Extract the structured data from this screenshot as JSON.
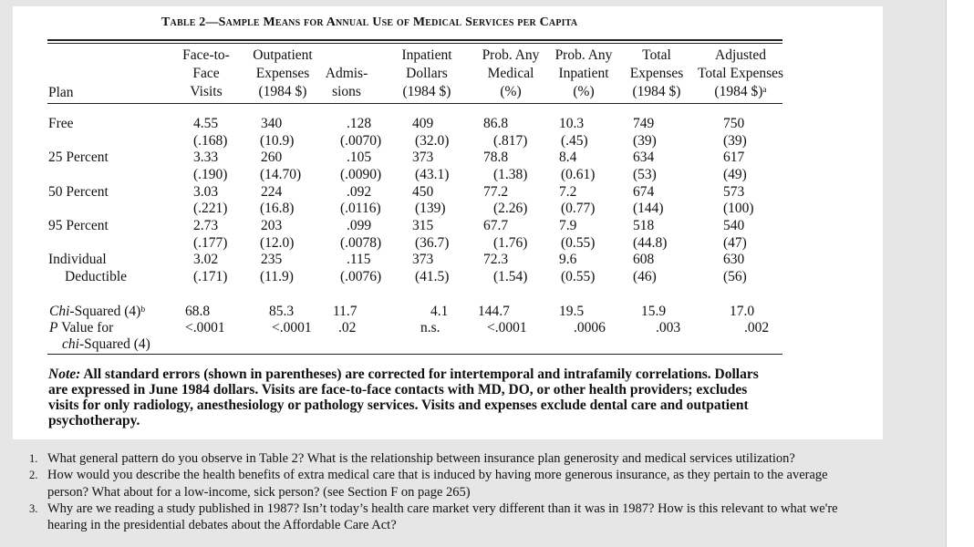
{
  "title": "Table 2—Sample Means for Annual Use of Medical Services per Capita",
  "headers": {
    "plan": "Plan",
    "columns": [
      [
        "Face-to-",
        "Face",
        "Visits"
      ],
      [
        "Outpatient",
        "Expenses",
        "(1984 $)"
      ],
      [
        "",
        "Admis-",
        "sions"
      ],
      [
        "Inpatient",
        "Dollars",
        "(1984 $)"
      ],
      [
        "Prob. Any",
        "Medical",
        "(%)"
      ],
      [
        "Prob. Any",
        "Inpatient",
        "(%)"
      ],
      [
        "Total",
        "Expenses",
        "(1984 $)"
      ],
      [
        "Adjusted",
        "Total Expenses",
        "(1984 $)ᵃ"
      ]
    ]
  },
  "rows": [
    {
      "plan": [
        "Free"
      ],
      "means": [
        "4.55",
        "340",
        ".128",
        "409",
        "86.8",
        "10.3",
        "749",
        "750"
      ],
      "se": [
        "(.168)",
        "(10.9)",
        "(.0070)",
        "(32.0)",
        "(.817)",
        "(.45)",
        "(39)",
        "(39)"
      ]
    },
    {
      "plan": [
        "25 Percent"
      ],
      "means": [
        "3.33",
        "260",
        ".105",
        "373",
        "78.8",
        "8.4",
        "634",
        "617"
      ],
      "se": [
        "(.190)",
        "(14.70)",
        "(.0090)",
        "(43.1)",
        "(1.38)",
        "(0.61)",
        "(53)",
        "(49)"
      ]
    },
    {
      "plan": [
        "50 Percent"
      ],
      "means": [
        "3.03",
        "224",
        ".092",
        "450",
        "77.2",
        "7.2",
        "674",
        "573"
      ],
      "se": [
        "(.221)",
        "(16.8)",
        "(.0116)",
        "(139)",
        "(2.26)",
        "(0.77)",
        "(144)",
        "(100)"
      ]
    },
    {
      "plan": [
        "95 Percent"
      ],
      "means": [
        "2.73",
        "203",
        ".099",
        "315",
        "67.7",
        "7.9",
        "518",
        "540"
      ],
      "se": [
        "(.177)",
        "(12.0)",
        "(.0078)",
        "(36.7)",
        "(1.76)",
        "(0.55)",
        "(44.8)",
        "(47)"
      ]
    },
    {
      "plan": [
        "Individual",
        "Deductible"
      ],
      "means": [
        "3.02",
        "235",
        ".115",
        "373",
        "72.3",
        "9.6",
        "608",
        "630"
      ],
      "se": [
        "(.171)",
        "(11.9)",
        "(.0076)",
        "(41.5)",
        "(1.54)",
        "(0.55)",
        "(46)",
        "(56)"
      ]
    }
  ],
  "chi": {
    "label_italic": "Chi",
    "label_rest": "-Squared (4)ᵇ",
    "values": [
      "68.8",
      "85.3",
      "11.7",
      "4.1",
      "144.7",
      "19.5",
      "15.9",
      "17.0"
    ]
  },
  "pvalue": {
    "label_italic": "P",
    "label_rest": " Value for",
    "label2_italic": "chi",
    "label2_rest": "-Squared (4)",
    "values": [
      "<.0001",
      "<.0001",
      ".02",
      "n.s.",
      "<.0001",
      ".0006",
      ".003",
      ".002"
    ]
  },
  "note": {
    "lead": "Note:",
    "text": " All standard errors (shown in parentheses) are corrected for intertemporal and intrafamily correlations. Dollars are expressed in June 1984 dollars. Visits are face-to-face contacts with MD, DO, or other health providers; excludes visits for only radiology, anesthesiology or pathology services. Visits and expenses exclude dental care and outpatient psychotherapy."
  },
  "questions": [
    {
      "num": "1.",
      "lines": [
        "What general pattern do you observe in Table 2?  What is the relationship between insurance plan generosity and medical services utilization?"
      ]
    },
    {
      "num": "2.",
      "lines": [
        "How would you describe the health benefits of extra medical care that is induced by having more generous insurance, as they pertain to the average",
        "person?  What about for a low-income, sick person? (see Section F on page 265)"
      ]
    },
    {
      "num": "3.",
      "lines": [
        "Why are we reading a study published in 1987?  Isn’t today’s health care market very different than it was in 1987? How is this relevant to what we're",
        "hearing in the presidential debates about the Affordable Care Act?"
      ]
    }
  ]
}
